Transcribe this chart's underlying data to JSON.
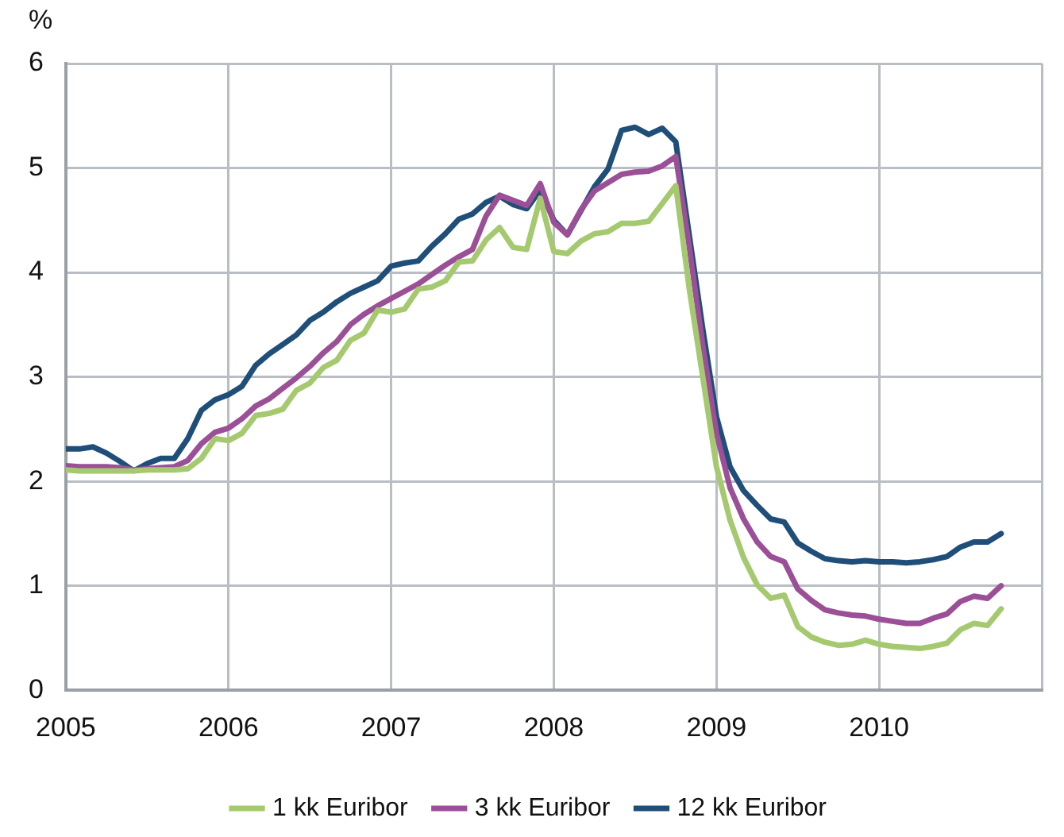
{
  "chart_data": {
    "type": "line",
    "ylabel": "%",
    "x": [
      2005,
      2005.0833,
      2005.1667,
      2005.25,
      2005.3333,
      2005.4167,
      2005.5,
      2005.5833,
      2005.6667,
      2005.75,
      2005.8333,
      2005.9167,
      2006,
      2006.0833,
      2006.1667,
      2006.25,
      2006.3333,
      2006.4167,
      2006.5,
      2006.5833,
      2006.6667,
      2006.75,
      2006.8333,
      2006.9167,
      2007,
      2007.0833,
      2007.1667,
      2007.25,
      2007.3333,
      2007.4167,
      2007.5,
      2007.5833,
      2007.6667,
      2007.75,
      2007.8333,
      2007.9167,
      2008,
      2008.0833,
      2008.1667,
      2008.25,
      2008.3333,
      2008.4167,
      2008.5,
      2008.5833,
      2008.6667,
      2008.75,
      2008.8333,
      2008.9167,
      2009,
      2009.0833,
      2009.1667,
      2009.25,
      2009.3333,
      2009.4167,
      2009.5,
      2009.5833,
      2009.6667,
      2009.75,
      2009.8333,
      2009.9167,
      2010,
      2010.0833,
      2010.1667,
      2010.25,
      2010.3333,
      2010.4167,
      2010.5,
      2010.5833,
      2010.6667,
      2010.75
    ],
    "series": [
      {
        "name": "1 kk Euribor",
        "color": "#a5c96f",
        "values": [
          2.11,
          2.1,
          2.1,
          2.1,
          2.1,
          2.1,
          2.11,
          2.11,
          2.11,
          2.12,
          2.22,
          2.41,
          2.39,
          2.46,
          2.63,
          2.65,
          2.69,
          2.87,
          2.94,
          3.09,
          3.16,
          3.35,
          3.42,
          3.64,
          3.62,
          3.65,
          3.84,
          3.86,
          3.92,
          4.1,
          4.11,
          4.31,
          4.43,
          4.24,
          4.22,
          4.71,
          4.2,
          4.18,
          4.3,
          4.37,
          4.39,
          4.47,
          4.47,
          4.49,
          4.66,
          4.83,
          3.84,
          2.99,
          2.14,
          1.63,
          1.27,
          1.01,
          0.88,
          0.91,
          0.61,
          0.51,
          0.46,
          0.43,
          0.44,
          0.48,
          0.44,
          0.42,
          0.41,
          0.4,
          0.42,
          0.45,
          0.58,
          0.64,
          0.62,
          0.78
        ]
      },
      {
        "name": "3 kk Euribor",
        "color": "#9b4f96",
        "values": [
          2.15,
          2.14,
          2.14,
          2.14,
          2.13,
          2.11,
          2.12,
          2.13,
          2.14,
          2.2,
          2.36,
          2.47,
          2.51,
          2.6,
          2.72,
          2.79,
          2.89,
          2.99,
          3.1,
          3.23,
          3.34,
          3.5,
          3.6,
          3.68,
          3.75,
          3.82,
          3.89,
          3.98,
          4.07,
          4.15,
          4.22,
          4.54,
          4.74,
          4.69,
          4.64,
          4.85,
          4.48,
          4.36,
          4.6,
          4.78,
          4.86,
          4.94,
          4.96,
          4.97,
          5.02,
          5.11,
          4.24,
          3.29,
          2.46,
          1.94,
          1.64,
          1.42,
          1.28,
          1.23,
          0.97,
          0.86,
          0.77,
          0.74,
          0.72,
          0.71,
          0.68,
          0.66,
          0.64,
          0.64,
          0.69,
          0.73,
          0.85,
          0.9,
          0.88,
          1.0
        ]
      },
      {
        "name": "12 kk Euribor",
        "color": "#1f4e79",
        "values": [
          2.31,
          2.31,
          2.33,
          2.27,
          2.19,
          2.1,
          2.17,
          2.22,
          2.22,
          2.41,
          2.68,
          2.78,
          2.83,
          2.91,
          3.11,
          3.22,
          3.31,
          3.4,
          3.54,
          3.62,
          3.72,
          3.8,
          3.86,
          3.92,
          4.06,
          4.09,
          4.11,
          4.25,
          4.37,
          4.51,
          4.56,
          4.67,
          4.73,
          4.65,
          4.61,
          4.79,
          4.5,
          4.36,
          4.59,
          4.82,
          4.99,
          5.36,
          5.39,
          5.32,
          5.38,
          5.25,
          4.35,
          3.45,
          2.62,
          2.14,
          1.91,
          1.77,
          1.64,
          1.61,
          1.41,
          1.33,
          1.26,
          1.24,
          1.23,
          1.24,
          1.23,
          1.23,
          1.22,
          1.23,
          1.25,
          1.28,
          1.37,
          1.42,
          1.42,
          1.5
        ]
      }
    ],
    "xlim": [
      2005,
      2011
    ],
    "xticks": [
      2005,
      2006,
      2007,
      2008,
      2009,
      2010,
      {
        "value": 2011,
        "label": null
      }
    ],
    "ylim": [
      0,
      6
    ],
    "yticks": [
      0,
      1,
      2,
      3,
      4,
      5,
      6
    ],
    "grid": true,
    "legend": "bottom",
    "marker": "none",
    "line_style": "solid"
  }
}
